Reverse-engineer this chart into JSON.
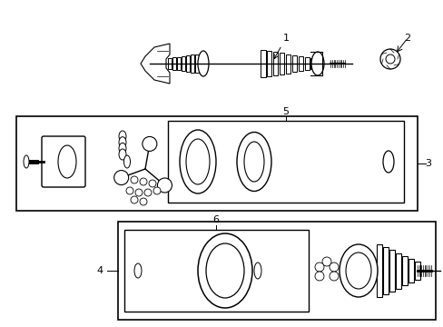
{
  "bg_color": "#ffffff",
  "line_color": "#000000",
  "lw": 0.8
}
